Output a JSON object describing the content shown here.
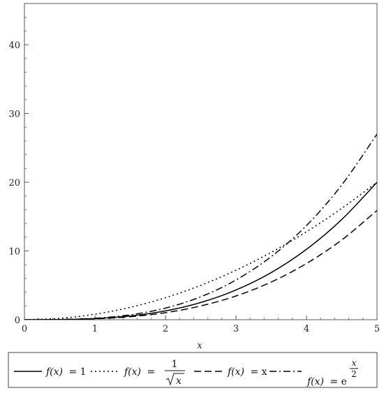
{
  "chart_data": {
    "type": "line",
    "title": "",
    "xlabel": "x",
    "ylabel": "",
    "xlim": [
      0,
      5
    ],
    "ylim": [
      0,
      46
    ],
    "x_ticks": [
      "0",
      "1",
      "2",
      "3",
      "4",
      "5"
    ],
    "y_ticks": [
      "0",
      "10",
      "20",
      "30",
      "40"
    ],
    "grid": false,
    "legend_position": "bottom",
    "x": [
      0,
      0.5,
      1,
      1.5,
      2,
      2.5,
      3,
      3.5,
      4,
      4.5,
      5
    ],
    "series": [
      {
        "name": "f(x) = 1",
        "style": "solid",
        "values": [
          0,
          0.02,
          0.16,
          0.54,
          1.28,
          2.5,
          4.32,
          6.86,
          10.24,
          14.58,
          20.0
        ]
      },
      {
        "name": "f(x) = 1/√x",
        "style": "dotted",
        "values": [
          0,
          0.2,
          0.8,
          1.8,
          3.2,
          5.0,
          7.2,
          9.8,
          12.8,
          16.2,
          20.0
        ],
        "values_note_skip": false
      },
      {
        "name": "f(x) = x",
        "style": "dashed",
        "values": [
          0,
          0.02,
          0.13,
          0.43,
          1.02,
          2.0,
          3.45,
          5.48,
          8.18,
          11.6,
          15.9
        ]
      },
      {
        "name": "f(x) = e^(x/2)",
        "style": "dashdot",
        "values": [
          0,
          0.03,
          0.21,
          0.71,
          1.69,
          3.33,
          5.78,
          9.18,
          13.7,
          19.6,
          27.0
        ]
      }
    ],
    "legend": {
      "item1": {
        "lhs": "f(x)",
        "eq": "= 1"
      },
      "item2": {
        "lhs": "f(x)",
        "eq": "=",
        "num": "1",
        "den": "x"
      },
      "item3": {
        "lhs": "f(x)",
        "eq": "= x"
      },
      "item4": {
        "lhs": "f(x)",
        "eq": "= e",
        "exp_num": "x",
        "exp_den": "2"
      }
    }
  }
}
